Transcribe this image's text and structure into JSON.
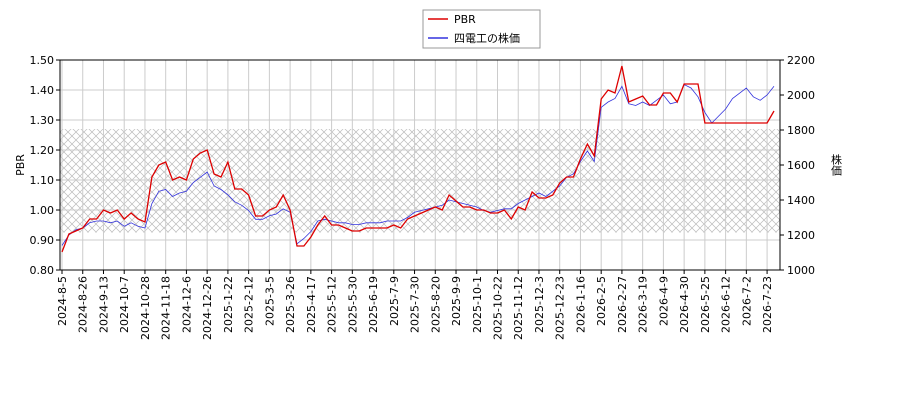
{
  "chart_data": {
    "type": "line",
    "categories": [
      "2024-8-5",
      null,
      null,
      "2024-8-26",
      null,
      null,
      "2024-9-13",
      null,
      null,
      "2024-10-7",
      null,
      null,
      "2024-10-28",
      null,
      null,
      "2024-11-18",
      null,
      null,
      "2024-12-6",
      null,
      null,
      "2024-12-26",
      null,
      null,
      "2025-1-22",
      null,
      null,
      "2025-2-12",
      null,
      null,
      "2025-3-5",
      null,
      null,
      "2025-3-26",
      null,
      null,
      "2025-4-17",
      null,
      null,
      "2025-5-12",
      null,
      null,
      "2025-5-30",
      null,
      null,
      "2025-6-19",
      null,
      null,
      "2025-7-9",
      null,
      null,
      "2025-7-30",
      null,
      null,
      "2025-8-20",
      null,
      null,
      "2025-9-9",
      null,
      null,
      "2025-10-1",
      null,
      null,
      "2025-10-22",
      null,
      null,
      "2025-11-12",
      null,
      null,
      "2025-12-3",
      null,
      null,
      "2025-12-23",
      null,
      null,
      "2026-1-16",
      null,
      null,
      "2026-2-5",
      null,
      null,
      "2026-2-27",
      null,
      null,
      "2026-3-19",
      null,
      null,
      "2026-4-9",
      null,
      null,
      "2026-4-30",
      null,
      null,
      "2026-5-25",
      null,
      null,
      "2026-6-12",
      null,
      null,
      "2026-7-2",
      null,
      null,
      "2026-7-23",
      null
    ],
    "series": [
      {
        "name": "PBR",
        "color": "#dd0000",
        "axis": "y",
        "values": [
          0.86,
          0.92,
          0.93,
          0.94,
          0.97,
          0.97,
          1.0,
          0.99,
          1.0,
          0.97,
          0.99,
          0.97,
          0.96,
          1.11,
          1.15,
          1.16,
          1.1,
          1.11,
          1.1,
          1.17,
          1.19,
          1.2,
          1.12,
          1.11,
          1.16,
          1.07,
          1.07,
          1.05,
          0.98,
          0.98,
          1.0,
          1.01,
          1.05,
          1.0,
          0.88,
          0.88,
          0.91,
          0.95,
          0.98,
          0.95,
          0.95,
          0.94,
          0.93,
          0.93,
          0.94,
          0.94,
          0.94,
          0.94,
          0.95,
          0.94,
          0.97,
          0.98,
          0.99,
          1.0,
          1.01,
          1.0,
          1.05,
          1.03,
          1.01,
          1.01,
          1.0,
          1.0,
          0.99,
          0.99,
          1.0,
          0.97,
          1.01,
          1.0,
          1.06,
          1.04,
          1.04,
          1.05,
          1.09,
          1.11,
          1.11,
          1.17,
          1.22,
          1.18,
          1.37,
          1.4,
          1.39,
          1.48,
          1.36,
          1.37,
          1.38,
          1.35,
          1.35,
          1.39,
          1.39,
          1.36,
          1.42,
          1.42,
          1.42,
          1.29,
          1.29,
          1.29,
          1.29,
          1.29,
          1.29,
          1.29,
          1.29,
          1.29,
          1.29,
          1.33
        ]
      },
      {
        "name": "四電工の株価",
        "color": "#3333dd",
        "axis": "y2",
        "values": [
          1140,
          1200,
          1230,
          1240,
          1270,
          1280,
          1280,
          1270,
          1280,
          1250,
          1270,
          1250,
          1240,
          1380,
          1450,
          1460,
          1420,
          1440,
          1450,
          1500,
          1530,
          1560,
          1480,
          1460,
          1430,
          1390,
          1370,
          1340,
          1290,
          1290,
          1310,
          1320,
          1350,
          1330,
          1150,
          1180,
          1220,
          1280,
          1290,
          1280,
          1270,
          1270,
          1260,
          1260,
          1270,
          1270,
          1270,
          1280,
          1280,
          1280,
          1300,
          1330,
          1340,
          1350,
          1360,
          1370,
          1400,
          1390,
          1380,
          1370,
          1360,
          1340,
          1330,
          1340,
          1350,
          1350,
          1380,
          1400,
          1420,
          1440,
          1420,
          1450,
          1480,
          1530,
          1550,
          1620,
          1680,
          1620,
          1930,
          1960,
          1980,
          2050,
          1950,
          1940,
          1960,
          1940,
          1970,
          2000,
          1950,
          1960,
          2060,
          2040,
          1990,
          1900,
          1840,
          1880,
          1920,
          1980,
          2010,
          2040,
          1990,
          1970,
          2000,
          2050
        ]
      }
    ],
    "ylabel": "PBR",
    "y2label": "株価",
    "ylim": [
      0.8,
      1.5
    ],
    "yticks": [
      {
        "value": 0.8,
        "label": "0.80"
      },
      {
        "value": 0.9,
        "label": "0.90"
      },
      {
        "value": 1.0,
        "label": "1.00"
      },
      {
        "value": 1.1,
        "label": "1.10"
      },
      {
        "value": 1.2,
        "label": "1.20"
      },
      {
        "value": 1.3,
        "label": "1.30"
      },
      {
        "value": 1.4,
        "label": "1.40"
      },
      {
        "value": 1.5,
        "label": "1.50"
      }
    ],
    "y2lim": [
      1000,
      2200
    ],
    "y2ticks": [
      1000,
      1200,
      1400,
      1600,
      1800,
      2000,
      2200
    ],
    "shaded_range": [
      0.925,
      1.27
    ],
    "grid": true,
    "legend": "top"
  }
}
